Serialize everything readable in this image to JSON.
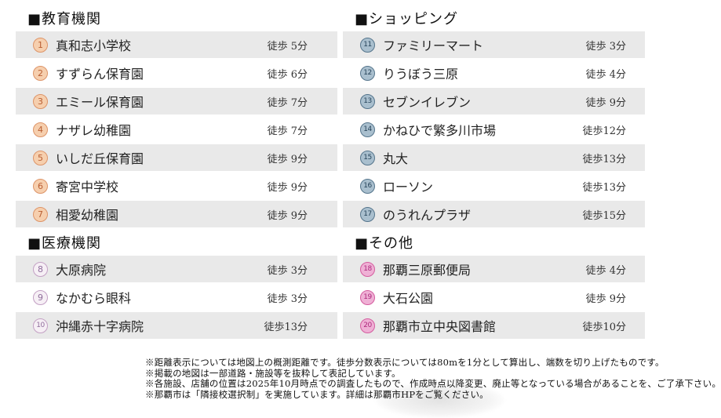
{
  "page": {
    "background": "#ffffff",
    "row_shade_color": "#e9e9e9"
  },
  "sections": [
    {
      "id": "education",
      "column": "left",
      "title": "■教育機関",
      "badge_style": {
        "fill": "#f6cfae",
        "border": "#dd9468",
        "number": "#b95f33"
      },
      "items": [
        {
          "num": "1",
          "name": "真和志小学校",
          "time": "徒歩 5分"
        },
        {
          "num": "2",
          "name": "すずらん保育園",
          "time": "徒歩 6分"
        },
        {
          "num": "3",
          "name": "エミール保育園",
          "time": "徒歩 7分"
        },
        {
          "num": "4",
          "name": "ナザレ幼稚園",
          "time": "徒歩 7分"
        },
        {
          "num": "5",
          "name": "いしだ丘保育園",
          "time": "徒歩 9分"
        },
        {
          "num": "6",
          "name": "寄宮中学校",
          "time": "徒歩 9分"
        },
        {
          "num": "7",
          "name": "相愛幼稚園",
          "time": "徒歩 9分"
        }
      ]
    },
    {
      "id": "medical",
      "column": "left",
      "title": "■医療機関",
      "badge_style": {
        "fill": "#f6eff5",
        "border": "#c3a0c4",
        "number": "#8f6d9b"
      },
      "items": [
        {
          "num": "8",
          "name": "大原病院",
          "time": "徒歩 3分"
        },
        {
          "num": "9",
          "name": "なかむら眼科",
          "time": "徒歩 3分"
        },
        {
          "num": "10",
          "name": "沖縄赤十字病院",
          "time": "徒歩13分"
        }
      ]
    },
    {
      "id": "shopping",
      "column": "right",
      "title": "■ショッピング",
      "badge_style": {
        "fill": "#a9bfce",
        "border": "#55758c",
        "number": "#27445a"
      },
      "items": [
        {
          "num": "11",
          "name": "ファミリーマート",
          "time": "徒歩 3分"
        },
        {
          "num": "12",
          "name": "りうぼう三原",
          "time": "徒歩 4分"
        },
        {
          "num": "13",
          "name": "セブンイレブン",
          "time": "徒歩 9分"
        },
        {
          "num": "14",
          "name": "かねひで繁多川市場",
          "time": "徒歩12分"
        },
        {
          "num": "15",
          "name": "丸大",
          "time": "徒歩13分"
        },
        {
          "num": "16",
          "name": "ローソン",
          "time": "徒歩13分"
        },
        {
          "num": "17",
          "name": "のうれんプラザ",
          "time": "徒歩15分"
        }
      ]
    },
    {
      "id": "others",
      "column": "right",
      "title": "■その他",
      "badge_style": {
        "fill": "#efb0d5",
        "border": "#d45d9f",
        "number": "#ad2a7d"
      },
      "items": [
        {
          "num": "18",
          "name": "那覇三原郵便局",
          "time": "徒歩 4分"
        },
        {
          "num": "19",
          "name": "大石公園",
          "time": "徒歩 9分"
        },
        {
          "num": "20",
          "name": "那覇市立中央図書館",
          "time": "徒歩10分"
        }
      ]
    }
  ],
  "footer": {
    "notes": [
      "※距離表示については地図上の概測距離です。徒歩分数表示については80mを1分として算出し、端数を切り上げたものです。",
      "※掲載の地図は一部道路・施設等を抜粋して表記しています。",
      "※各施設、店舗の位置は2025年10月時点での調査したもので、作成時点以降変更、廃止等となっている場合があることを、ご了承下さい。",
      "※那覇市は「隣接校選択制」を実施しています。詳細は那覇市HPをご覧ください。"
    ]
  }
}
